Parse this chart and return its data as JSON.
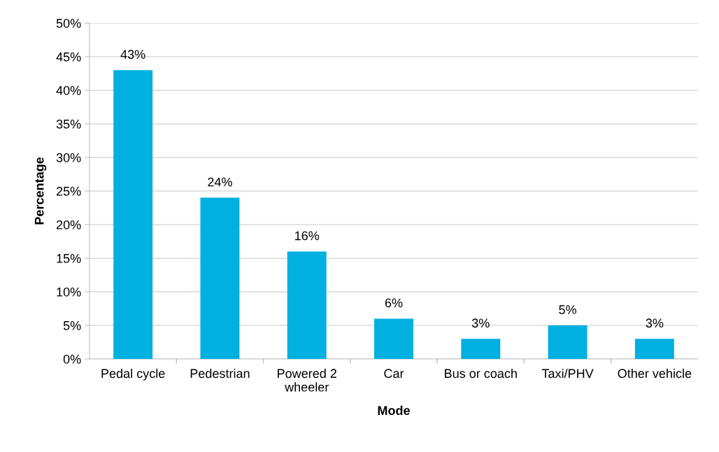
{
  "chart_data": {
    "type": "bar",
    "xlabel": "Mode",
    "ylabel": "Percentage",
    "categories": [
      "Pedal cycle",
      "Pedestrian",
      "Powered 2\nwheeler",
      "Car",
      "Bus or coach",
      "Taxi/PHV",
      "Other vehicle"
    ],
    "values": [
      43,
      24,
      16,
      6,
      3,
      5,
      3
    ],
    "value_labels": [
      "43%",
      "24%",
      "16%",
      "6%",
      "3%",
      "5%",
      "3%"
    ],
    "color": "#00b0e0",
    "ylim": [
      0,
      50
    ],
    "yticks": [
      {
        "value": 0,
        "label": "0%"
      },
      {
        "value": 5,
        "label": "5%"
      },
      {
        "value": 10,
        "label": "10%"
      },
      {
        "value": 15,
        "label": "15%"
      },
      {
        "value": 20,
        "label": "20%"
      },
      {
        "value": 25,
        "label": "25%"
      },
      {
        "value": 30,
        "label": "30%"
      },
      {
        "value": 35,
        "label": "35%"
      },
      {
        "value": 40,
        "label": "40%"
      },
      {
        "value": 45,
        "label": "45%"
      },
      {
        "value": 50,
        "label": "50%"
      }
    ],
    "grid": "y",
    "legend": false
  }
}
